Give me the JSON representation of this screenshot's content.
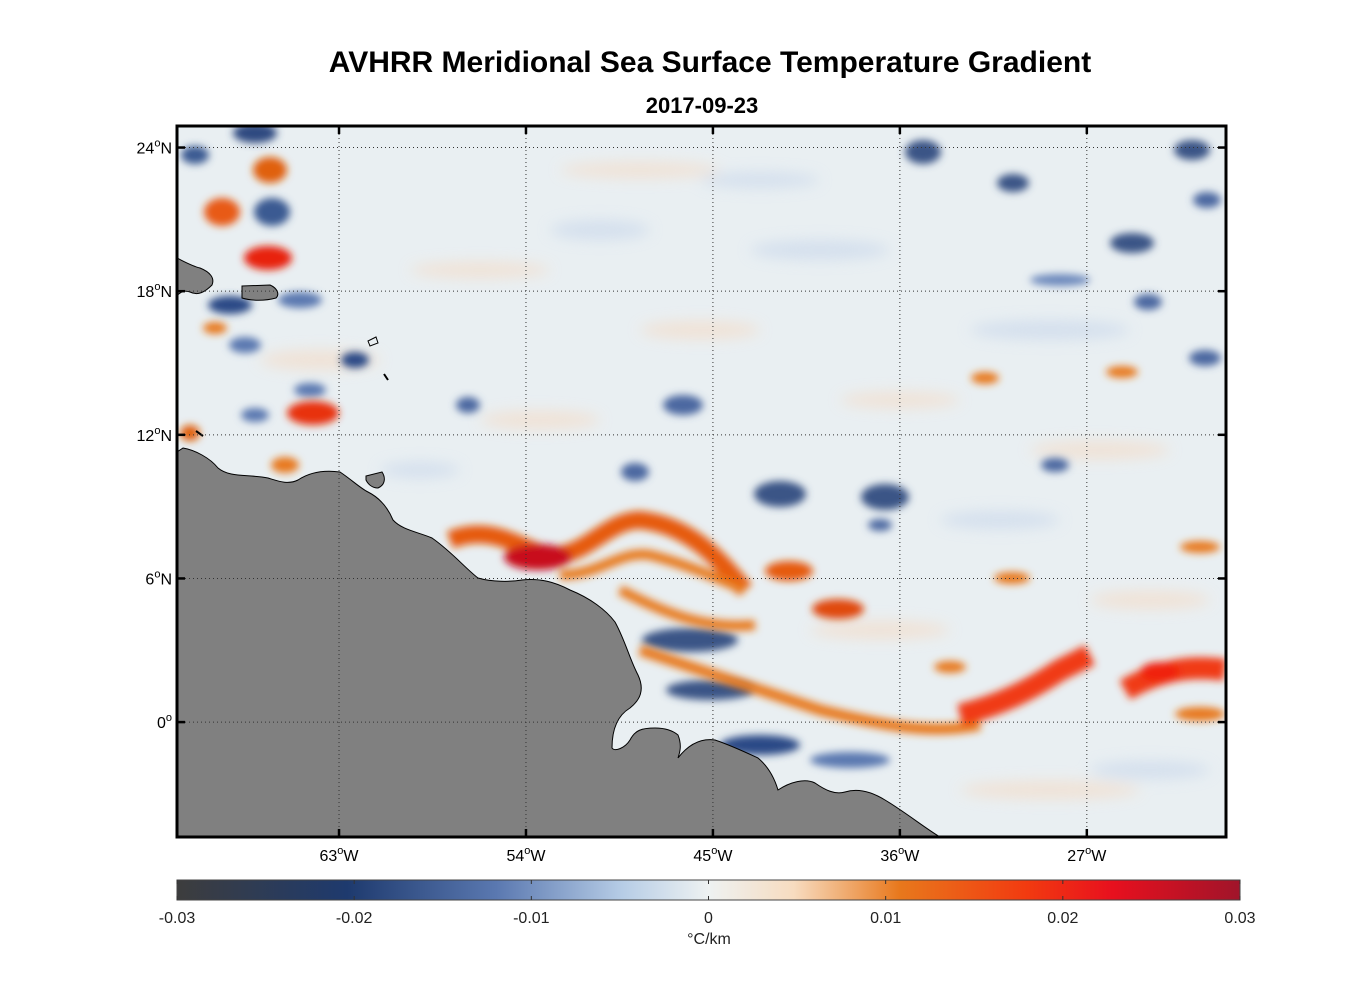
{
  "title": "AVHRR Meridional Sea Surface Temperature Gradient",
  "subtitle": "2017-09-23",
  "map": {
    "lon_range": [
      -70.8,
      -20.3
    ],
    "lat_range": [
      -4.8,
      24.9
    ],
    "x_ticks": [
      {
        "value": -63,
        "label": "63",
        "suffix": "W"
      },
      {
        "value": -54,
        "label": "54",
        "suffix": "W"
      },
      {
        "value": -45,
        "label": "45",
        "suffix": "W"
      },
      {
        "value": -36,
        "label": "36",
        "suffix": "W"
      },
      {
        "value": -27,
        "label": "27",
        "suffix": "W"
      }
    ],
    "y_ticks": [
      {
        "value": 24,
        "label": "24",
        "suffix": "N"
      },
      {
        "value": 18,
        "label": "18",
        "suffix": "N"
      },
      {
        "value": 12,
        "label": "12",
        "suffix": "N"
      },
      {
        "value": 6,
        "label": "6",
        "suffix": "N"
      },
      {
        "value": 0,
        "label": "0",
        "suffix": ""
      }
    ],
    "grid": "dotted",
    "land_color": "#808080",
    "ocean_color": "#e9eff2"
  },
  "colorbar": {
    "min": -0.03,
    "max": 0.03,
    "ticks": [
      "-0.03",
      "-0.02",
      "-0.01",
      "0",
      "0.01",
      "0.02",
      "0.03"
    ],
    "label": "°C/km",
    "colors": [
      "#3d3d3d",
      "#1e3a6e",
      "#5a78b0",
      "#b7cde6",
      "#eef2f2",
      "#f7dcc0",
      "#e8781c",
      "#f23a10",
      "#e8101e",
      "#a0142a"
    ]
  }
}
